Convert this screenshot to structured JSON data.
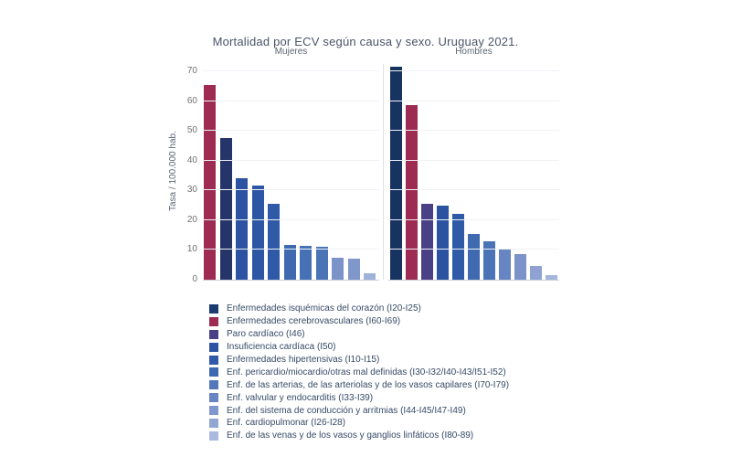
{
  "chart_data": {
    "type": "bar",
    "title": "Mortalidad por ECV según causa y sexo. Uruguay 2021.",
    "ylabel": "Tasa / 100.000 hab.",
    "ylim": [
      0,
      72
    ],
    "yticks": [
      0,
      10,
      20,
      30,
      40,
      50,
      60,
      70
    ],
    "grid": true,
    "legend_position": "bottom-left",
    "panels": [
      {
        "title": "Mujeres",
        "bars": [
          {
            "value": 65.5,
            "color": "#9d2b52"
          },
          {
            "value": 47.5,
            "color": "#263569"
          },
          {
            "value": 34.0,
            "color": "#2b53a1"
          },
          {
            "value": 31.5,
            "color": "#2d57a5"
          },
          {
            "value": 25.5,
            "color": "#2f5aa8"
          },
          {
            "value": 11.7,
            "color": "#3f6ab0"
          },
          {
            "value": 11.5,
            "color": "#4671b4"
          },
          {
            "value": 11.2,
            "color": "#4a74b6"
          },
          {
            "value": 7.5,
            "color": "#7b93c8"
          },
          {
            "value": 7.0,
            "color": "#8097ca"
          },
          {
            "value": 2.0,
            "color": "#9fb2d9"
          }
        ]
      },
      {
        "title": "Hombres",
        "bars": [
          {
            "value": 71.5,
            "color": "#17335f"
          },
          {
            "value": 58.5,
            "color": "#9d2b52"
          },
          {
            "value": 25.5,
            "color": "#4a4085"
          },
          {
            "value": 25.0,
            "color": "#2b53a1"
          },
          {
            "value": 22.0,
            "color": "#2f5aa8"
          },
          {
            "value": 15.5,
            "color": "#3f6ab0"
          },
          {
            "value": 13.0,
            "color": "#4a74b6"
          },
          {
            "value": 10.0,
            "color": "#6685c2"
          },
          {
            "value": 8.5,
            "color": "#7b93c8"
          },
          {
            "value": 4.5,
            "color": "#8fa3d2"
          },
          {
            "value": 1.5,
            "color": "#a5b6dc"
          }
        ]
      }
    ],
    "legend": [
      {
        "label": "Enfermedades isquémicas del corazón (I20-I25)",
        "color": "#1c3b6e"
      },
      {
        "label": "Enfermedades cerebrovasculares (I60-I69)",
        "color": "#9d2b52"
      },
      {
        "label": "Paro cardíaco (I46)",
        "color": "#4a4085"
      },
      {
        "label": "Insuficiencia cardíaca (I50)",
        "color": "#2b53a1"
      },
      {
        "label": "Enfermedades hipertensivas (I10-I15)",
        "color": "#3059a8"
      },
      {
        "label": "Enf. pericardio/miocardio/otras mal definidas (I30-I32/I40-I43/I51-I52)",
        "color": "#3d68b2"
      },
      {
        "label": "Enf. de las arterias, de las arteriolas y de los vasos capilares (I70-I79)",
        "color": "#5377ba"
      },
      {
        "label": "Enf. valvular y endocarditis (I33-I39)",
        "color": "#6685c2"
      },
      {
        "label": "Enf. del sistema de conducción y arritmias (I44-I45/I47-I49)",
        "color": "#7f97cc"
      },
      {
        "label": "Enf. cardiopulmonar (I26-I28)",
        "color": "#92a6d4"
      },
      {
        "label": "Enf. de las venas y de los vasos y ganglios linfáticos (I80-89)",
        "color": "#aab9e0"
      }
    ]
  }
}
